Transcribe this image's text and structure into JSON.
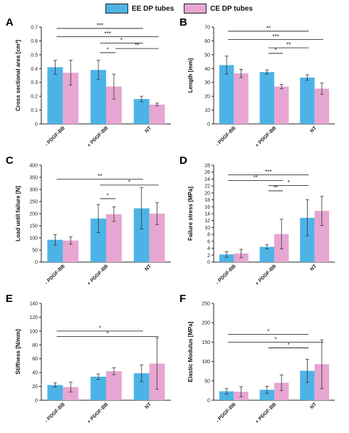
{
  "colors": {
    "ee": "#4db3e6",
    "ce": "#e6a6d1",
    "axis": "#222222",
    "error": "#333333"
  },
  "legend": [
    {
      "label": "EE DP tubes",
      "color": "#4db3e6"
    },
    {
      "label": "CE DP tubes",
      "color": "#e6a6d1"
    }
  ],
  "chart_data": [
    {
      "panel": "A",
      "type": "bar",
      "categories": [
        "- PDGF-BB",
        "+ PDGF-BB",
        "NT"
      ],
      "ylabel": "Cross sectional area [cm²]",
      "ylim": [
        0,
        0.7
      ],
      "yticks": [
        "0",
        "0.1",
        "0.2",
        "0.3",
        "0.4",
        "0.5",
        "0.6",
        "0.7"
      ],
      "series": [
        {
          "name": "EE DP tubes",
          "values": [
            0.41,
            0.39,
            0.18
          ],
          "errors": [
            0.05,
            0.07,
            0.02
          ]
        },
        {
          "name": "CE DP tubes",
          "values": [
            0.37,
            0.27,
            0.14
          ],
          "errors": [
            0.09,
            0.09,
            0.01
          ]
        }
      ],
      "significance": [
        {
          "from": 0,
          "to": 2,
          "y": 0.69,
          "label": "***"
        },
        {
          "from": 0,
          "to": 2.3,
          "y": 0.63,
          "label": "***"
        },
        {
          "from": 1,
          "to": 2,
          "y": 0.585,
          "label": "*"
        },
        {
          "from": 1,
          "to": 1.3,
          "y": 0.515,
          "label": "*"
        },
        {
          "from": 1.3,
          "to": 2.3,
          "y": 0.545,
          "label": "**"
        }
      ]
    },
    {
      "panel": "B",
      "type": "bar",
      "categories": [
        "- PDGF-BB",
        "+ PDGF-BB",
        "NT"
      ],
      "ylabel": "Length [mm]",
      "ylim": [
        0,
        70
      ],
      "yticks": [
        "0",
        "10",
        "20",
        "30",
        "40",
        "50",
        "60",
        "70"
      ],
      "series": [
        {
          "name": "EE DP tubes",
          "values": [
            42.5,
            37.5,
            33.5
          ],
          "errors": [
            6.5,
            1.5,
            2
          ]
        },
        {
          "name": "CE DP tubes",
          "values": [
            36.5,
            27,
            25.5
          ],
          "errors": [
            3,
            1.5,
            4
          ]
        }
      ],
      "significance": [
        {
          "from": 0,
          "to": 2,
          "y": 67,
          "label": "**"
        },
        {
          "from": 0,
          "to": 2.3,
          "y": 61,
          "label": "***"
        },
        {
          "from": 1,
          "to": 2,
          "y": 55,
          "label": "**"
        },
        {
          "from": 1,
          "to": 1.3,
          "y": 51,
          "label": "*"
        }
      ]
    },
    {
      "panel": "C",
      "type": "bar",
      "categories": [
        "- PDGF-BB",
        "+ PDGF-BB",
        "NT"
      ],
      "ylabel": "Load until failure [N]",
      "ylim": [
        0,
        400
      ],
      "yticks": [
        "0",
        "50",
        "100",
        "150",
        "200",
        "250",
        "300",
        "350",
        "400"
      ],
      "series": [
        {
          "name": "EE DP tubes",
          "values": [
            92,
            180,
            222
          ],
          "errors": [
            22,
            58,
            85
          ]
        },
        {
          "name": "CE DP tubes",
          "values": [
            89,
            198,
            200
          ],
          "errors": [
            15,
            30,
            45
          ]
        }
      ],
      "significance": [
        {
          "from": 0,
          "to": 2,
          "y": 342,
          "label": "**"
        },
        {
          "from": 1,
          "to": 2.3,
          "y": 318,
          "label": "*"
        },
        {
          "from": 1,
          "to": 1.3,
          "y": 262,
          "label": "*"
        }
      ]
    },
    {
      "panel": "D",
      "type": "bar",
      "categories": [
        "- PDGF-BB",
        "+ PDGF-BB",
        "NT"
      ],
      "ylabel": "Failure stress [MPa]",
      "ylim": [
        0,
        28
      ],
      "yticks": [
        "0",
        "2",
        "4",
        "6",
        "8",
        "10",
        "12",
        "14",
        "16",
        "18",
        "20",
        "22",
        "24",
        "26",
        "28"
      ],
      "series": [
        {
          "name": "EE DP tubes",
          "values": [
            2.2,
            4.4,
            12.8
          ],
          "errors": [
            0.8,
            0.6,
            5.2
          ]
        },
        {
          "name": "CE DP tubes",
          "values": [
            2.5,
            8.1,
            14.8
          ],
          "errors": [
            1.2,
            4.3,
            4.2
          ]
        }
      ],
      "significance": [
        {
          "from": 0,
          "to": 2,
          "y": 25.2,
          "label": "***"
        },
        {
          "from": 0,
          "to": 1.3,
          "y": 23.6,
          "label": "**"
        },
        {
          "from": 1,
          "to": 2,
          "y": 22.1,
          "label": "*"
        },
        {
          "from": 1,
          "to": 1.3,
          "y": 20.6,
          "label": "**"
        }
      ]
    },
    {
      "panel": "E",
      "type": "bar",
      "categories": [
        "- PDGF-BB",
        "+ PDGF-BB",
        "NT"
      ],
      "ylabel": "Stiffness [N/mm]",
      "ylim": [
        0,
        140
      ],
      "yticks": [
        "0",
        "20",
        "40",
        "60",
        "80",
        "100",
        "120",
        "140"
      ],
      "series": [
        {
          "name": "EE DP tubes",
          "values": [
            22,
            34,
            39
          ],
          "errors": [
            3,
            4,
            12
          ]
        },
        {
          "name": "CE DP tubes",
          "values": [
            19,
            42,
            53
          ],
          "errors": [
            7,
            5,
            37
          ]
        }
      ],
      "significance": [
        {
          "from": 0,
          "to": 2,
          "y": 100,
          "label": "*"
        },
        {
          "from": 0,
          "to": 2.3,
          "y": 92,
          "label": "*"
        }
      ]
    },
    {
      "panel": "F",
      "type": "bar",
      "categories": [
        "- PDGF-BB",
        "+ PDGF-BB",
        "NT"
      ],
      "ylabel": "Elastic Modulus [MPa]",
      "ylim": [
        0,
        250
      ],
      "yticks": [
        "0",
        "50",
        "100",
        "150",
        "200",
        "250"
      ],
      "series": [
        {
          "name": "EE DP tubes",
          "values": [
            23,
            27,
            76
          ],
          "errors": [
            7,
            9,
            30
          ]
        },
        {
          "name": "CE DP tubes",
          "values": [
            22,
            45,
            93
          ],
          "errors": [
            13,
            20,
            63
          ]
        }
      ],
      "significance": [
        {
          "from": 0,
          "to": 2,
          "y": 170,
          "label": "*"
        },
        {
          "from": 0,
          "to": 2.3,
          "y": 150,
          "label": "*"
        },
        {
          "from": 1,
          "to": 2,
          "y": 135,
          "label": "*"
        }
      ]
    }
  ]
}
